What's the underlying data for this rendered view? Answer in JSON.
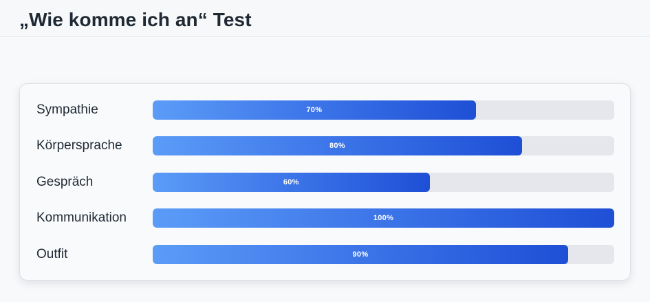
{
  "header": {
    "title": "„Wie komme ich an“ Test"
  },
  "results": [
    {
      "label": "Sympathie",
      "percent": 70,
      "value_text": "70%"
    },
    {
      "label": "Körpersprache",
      "percent": 80,
      "value_text": "80%"
    },
    {
      "label": "Gespräch",
      "percent": 60,
      "value_text": "60%"
    },
    {
      "label": "Kommunikation",
      "percent": 100,
      "value_text": "100%"
    },
    {
      "label": "Outfit",
      "percent": 90,
      "value_text": "90%"
    }
  ],
  "colors": {
    "bar_gradient_start": "#5b9cf7",
    "bar_gradient_end": "#1e4fd6",
    "track": "#e5e7ec",
    "text": "#1f2933"
  }
}
